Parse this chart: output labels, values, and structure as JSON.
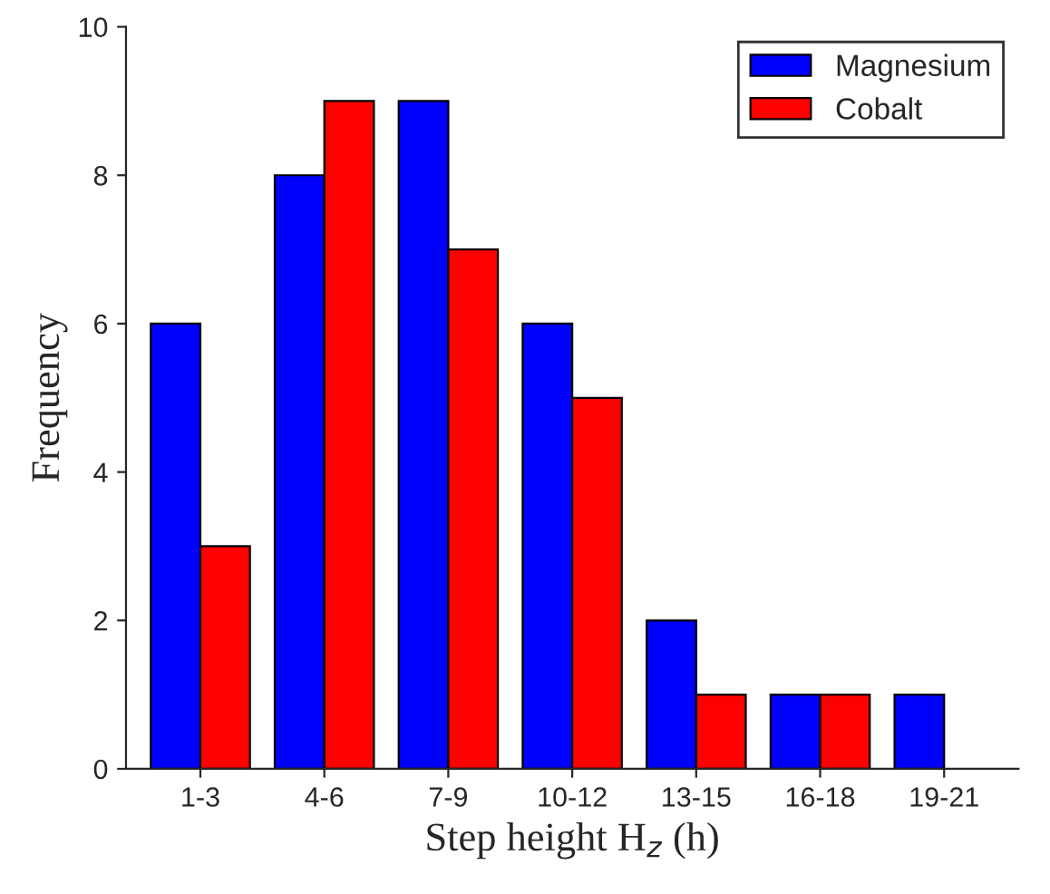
{
  "chart_data": {
    "type": "bar",
    "xlabel": "Step height H$_{z}$ (h)",
    "ylabel": "Frequency",
    "categories": [
      "1-3",
      "4-6",
      "7-9",
      "10-12",
      "13-15",
      "16-18",
      "19-21"
    ],
    "series": [
      {
        "name": "Magnesium",
        "color": "#0000ff",
        "values": [
          6,
          8,
          9,
          6,
          2,
          1,
          1
        ]
      },
      {
        "name": "Cobalt",
        "color": "#ff0000",
        "values": [
          3,
          9,
          7,
          5,
          1,
          1,
          null
        ]
      }
    ],
    "ylim": [
      0,
      10
    ],
    "yticks": [
      0,
      2,
      4,
      6,
      8,
      10
    ],
    "grid": false,
    "legend": "top right"
  }
}
